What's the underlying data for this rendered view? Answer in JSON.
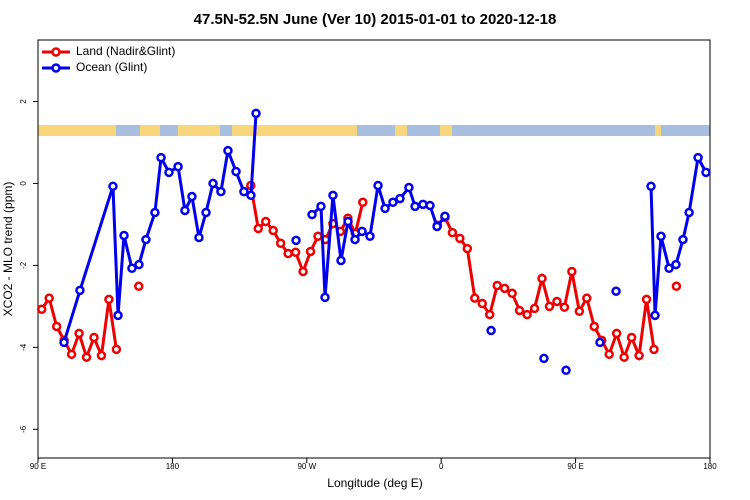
{
  "chart_data": {
    "type": "line",
    "title": "47.5N-52.5N June (Ver 10)   2015-01-01 to 2020-12-18",
    "x_label": "Longitude (deg E)",
    "y_label": "XCO2 - MLO trend (ppm)",
    "xlim": [
      90,
      540
    ],
    "ylim": [
      -6.7,
      3.5
    ],
    "xticks": [
      {
        "value": 90,
        "label": "90 E"
      },
      {
        "value": 180,
        "label": "180"
      },
      {
        "value": 270,
        "label": "90 W"
      },
      {
        "value": 360,
        "label": "0"
      },
      {
        "value": 450,
        "label": "90 E"
      },
      {
        "value": 540,
        "label": "180"
      }
    ],
    "yticks": [
      2,
      0,
      -2,
      -4,
      -6
    ],
    "legend": "top-left",
    "series": [
      {
        "name": "Land (Nadir&Glint)",
        "color": "#ee0000",
        "x": [
          92.5,
          97.5,
          102.5,
          107.5,
          112.5,
          117.5,
          122.5,
          127.5,
          132.5,
          137.5,
          142.5,
          null,
          157.5,
          null,
          232.5,
          237.5,
          242.5,
          247.5,
          252.5,
          257.5,
          262.5,
          267.5,
          272.5,
          277.5,
          282.5,
          287.5,
          292.5,
          297.5,
          302.5,
          307.5,
          null,
          357.5,
          362.5,
          367.5,
          372.5,
          377.5,
          382.5,
          387.5,
          392.5,
          397.5,
          402.5,
          407.5,
          412.5,
          417.5,
          422.5,
          427.5,
          432.5,
          437.5,
          442.5,
          447.5,
          452.5,
          457.5,
          462.5,
          467.5,
          472.5,
          477.5,
          482.5,
          487.5,
          492.5,
          497.5,
          502.5,
          null,
          517.5
        ],
        "values": [
          -3.07,
          -2.8,
          -3.49,
          -3.83,
          -4.17,
          -3.66,
          -4.24,
          -3.76,
          -4.2,
          -2.83,
          -4.05,
          null,
          -2.51,
          null,
          -0.05,
          -1.1,
          -0.93,
          -1.15,
          -1.46,
          -1.71,
          -1.68,
          -2.15,
          -1.66,
          -1.29,
          -1.37,
          -0.98,
          -1.17,
          -0.85,
          -1.22,
          -0.46,
          null,
          -1.02,
          -0.83,
          -1.2,
          -1.34,
          -1.59,
          -2.8,
          -2.93,
          -3.2,
          -2.49,
          -2.56,
          -2.68,
          -3.1,
          -3.2,
          -3.05,
          -2.32,
          -3.0,
          -2.88,
          -3.02,
          -2.15,
          -3.12,
          -2.8,
          -3.49,
          -3.83,
          -4.17,
          -3.66,
          -4.24,
          -3.76,
          -4.2,
          -2.83,
          -4.05,
          null,
          -2.51
        ]
      },
      {
        "name": "Ocean (Glint)",
        "color": "#0000ee",
        "x": [
          107.4,
          118.1,
          140.2,
          143.6,
          147.6,
          152.9,
          157.6,
          162.3,
          168.3,
          172.4,
          177.7,
          183.8,
          188.4,
          193.1,
          197.8,
          202.5,
          207.2,
          212.5,
          217.2,
          222.6,
          227.9,
          232.6,
          236.0,
          null,
          262.8,
          null,
          273.5,
          279.5,
          282.2,
          287.5,
          292.9,
          297.6,
          302.3,
          307.0,
          312.3,
          317.7,
          322.4,
          327.7,
          332.4,
          338.4,
          342.5,
          347.8,
          352.5,
          357.2,
          362.5,
          null,
          393.4,
          null,
          428.8,
          null,
          443.6,
          null,
          466.3,
          null,
          477.1,
          null,
          500.5,
          503.2,
          507.2,
          512.6,
          517.2,
          521.9,
          526.0,
          532.0,
          537.3
        ],
        "values": [
          -3.88,
          -2.61,
          -0.07,
          -3.22,
          -1.27,
          -2.07,
          -1.98,
          -1.37,
          -0.71,
          0.63,
          0.27,
          0.41,
          -0.66,
          -0.32,
          -1.32,
          -0.71,
          0.0,
          -0.2,
          0.8,
          0.29,
          -0.2,
          -0.29,
          1.71,
          null,
          -1.39,
          null,
          -0.76,
          -0.56,
          -2.78,
          -0.29,
          -1.88,
          -0.93,
          -1.37,
          -1.17,
          -1.29,
          -0.05,
          -0.61,
          -0.46,
          -0.37,
          -0.1,
          -0.56,
          -0.51,
          -0.54,
          -1.05,
          -0.8,
          null,
          -3.59,
          null,
          -4.27,
          null,
          -4.56,
          null,
          -3.88,
          null,
          -2.63,
          null,
          -0.07,
          -3.22,
          -1.29,
          -2.07,
          -1.98,
          -1.37,
          -0.71,
          0.63,
          0.27
        ]
      }
    ]
  }
}
